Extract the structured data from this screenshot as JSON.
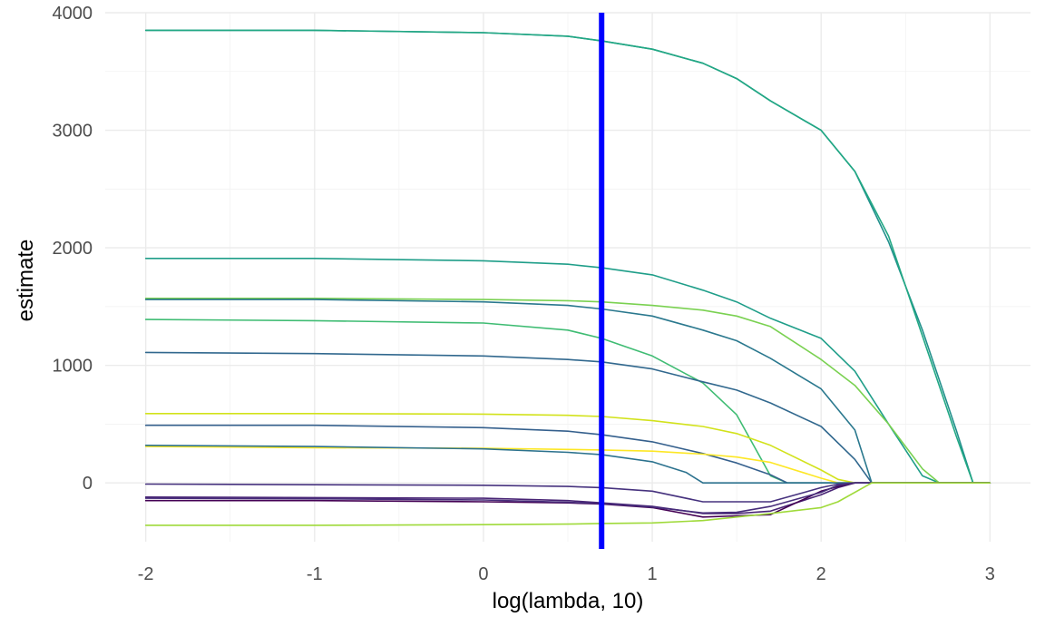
{
  "chart_data": {
    "type": "line",
    "title": "",
    "xlabel": "log(lambda, 10)",
    "ylabel": "estimate",
    "xlim": [
      -2.24,
      3.24
    ],
    "ylim": [
      -500,
      4000
    ],
    "xticks": [
      -2,
      -1,
      0,
      1,
      2,
      3
    ],
    "yticks": [
      0,
      1000,
      2000,
      3000,
      4000
    ],
    "grid": true,
    "legend": "none",
    "reference_line": {
      "x": 0.7,
      "color": "#0000ff"
    },
    "series": [
      {
        "color": "#21908c",
        "points": [
          [
            -2,
            3850
          ],
          [
            -1,
            3850
          ],
          [
            0,
            3830
          ],
          [
            0.5,
            3800
          ],
          [
            0.7,
            3760
          ],
          [
            1,
            3690
          ],
          [
            1.3,
            3570
          ],
          [
            1.5,
            3440
          ],
          [
            1.7,
            3250
          ],
          [
            2,
            3000
          ],
          [
            2.2,
            2650
          ],
          [
            2.4,
            2050
          ],
          [
            2.6,
            1300
          ],
          [
            2.8,
            450
          ],
          [
            2.9,
            0
          ],
          [
            3,
            0
          ]
        ]
      },
      {
        "color": "#22a884",
        "points": [
          [
            -2,
            3850
          ],
          [
            -1,
            3850
          ],
          [
            0,
            3830
          ],
          [
            0.5,
            3800
          ],
          [
            0.7,
            3760
          ],
          [
            1,
            3690
          ],
          [
            1.3,
            3570
          ],
          [
            1.5,
            3440
          ],
          [
            1.7,
            3250
          ],
          [
            2,
            3000
          ],
          [
            2.2,
            2650
          ],
          [
            2.4,
            2100
          ],
          [
            2.6,
            1250
          ],
          [
            2.8,
            400
          ],
          [
            2.9,
            0
          ],
          [
            3,
            0
          ]
        ]
      },
      {
        "color": "#1f9e89",
        "points": [
          [
            -2,
            1910
          ],
          [
            -1,
            1910
          ],
          [
            0,
            1890
          ],
          [
            0.5,
            1860
          ],
          [
            0.7,
            1830
          ],
          [
            1,
            1770
          ],
          [
            1.3,
            1640
          ],
          [
            1.5,
            1540
          ],
          [
            1.7,
            1400
          ],
          [
            2,
            1230
          ],
          [
            2.2,
            950
          ],
          [
            2.4,
            500
          ],
          [
            2.6,
            60
          ],
          [
            2.7,
            0
          ],
          [
            3,
            0
          ]
        ]
      },
      {
        "color": "#7ad151",
        "points": [
          [
            -2,
            1570
          ],
          [
            -1,
            1570
          ],
          [
            0,
            1560
          ],
          [
            0.5,
            1550
          ],
          [
            0.7,
            1540
          ],
          [
            1,
            1510
          ],
          [
            1.3,
            1470
          ],
          [
            1.5,
            1420
          ],
          [
            1.7,
            1330
          ],
          [
            2,
            1050
          ],
          [
            2.2,
            830
          ],
          [
            2.4,
            500
          ],
          [
            2.6,
            120
          ],
          [
            2.7,
            0
          ],
          [
            3,
            0
          ]
        ]
      },
      {
        "color": "#2a788e",
        "points": [
          [
            -2,
            1560
          ],
          [
            -1,
            1560
          ],
          [
            0,
            1540
          ],
          [
            0.5,
            1510
          ],
          [
            0.7,
            1480
          ],
          [
            1,
            1420
          ],
          [
            1.3,
            1300
          ],
          [
            1.5,
            1210
          ],
          [
            1.7,
            1060
          ],
          [
            2,
            800
          ],
          [
            2.2,
            450
          ],
          [
            2.3,
            0
          ],
          [
            3,
            0
          ]
        ]
      },
      {
        "color": "#3fbc73",
        "points": [
          [
            -2,
            1390
          ],
          [
            -1,
            1380
          ],
          [
            0,
            1360
          ],
          [
            0.5,
            1300
          ],
          [
            0.7,
            1230
          ],
          [
            1,
            1080
          ],
          [
            1.3,
            850
          ],
          [
            1.5,
            580
          ],
          [
            1.7,
            60
          ],
          [
            1.8,
            0
          ],
          [
            3,
            0
          ]
        ]
      },
      {
        "color": "#31688e",
        "points": [
          [
            -2,
            1110
          ],
          [
            -1,
            1100
          ],
          [
            0,
            1080
          ],
          [
            0.5,
            1050
          ],
          [
            0.7,
            1030
          ],
          [
            1,
            970
          ],
          [
            1.3,
            860
          ],
          [
            1.5,
            790
          ],
          [
            1.7,
            680
          ],
          [
            2,
            480
          ],
          [
            2.2,
            200
          ],
          [
            2.3,
            0
          ],
          [
            3,
            0
          ]
        ]
      },
      {
        "color": "#d2e21b",
        "points": [
          [
            -2,
            590
          ],
          [
            -1,
            590
          ],
          [
            0,
            585
          ],
          [
            0.5,
            575
          ],
          [
            0.7,
            565
          ],
          [
            1,
            530
          ],
          [
            1.3,
            480
          ],
          [
            1.5,
            420
          ],
          [
            1.7,
            320
          ],
          [
            2,
            110
          ],
          [
            2.1,
            30
          ],
          [
            2.2,
            0
          ],
          [
            3,
            0
          ]
        ]
      },
      {
        "color": "#35608d",
        "points": [
          [
            -2,
            490
          ],
          [
            -1,
            490
          ],
          [
            0,
            470
          ],
          [
            0.5,
            440
          ],
          [
            0.7,
            410
          ],
          [
            1,
            350
          ],
          [
            1.3,
            250
          ],
          [
            1.5,
            170
          ],
          [
            1.7,
            70
          ],
          [
            1.8,
            0
          ],
          [
            3,
            0
          ]
        ]
      },
      {
        "color": "#fde725",
        "points": [
          [
            -2,
            310
          ],
          [
            -1,
            300
          ],
          [
            0,
            295
          ],
          [
            0.5,
            285
          ],
          [
            0.7,
            280
          ],
          [
            1,
            270
          ],
          [
            1.3,
            245
          ],
          [
            1.5,
            220
          ],
          [
            1.7,
            175
          ],
          [
            2,
            40
          ],
          [
            2.1,
            0
          ],
          [
            3,
            0
          ]
        ]
      },
      {
        "color": "#2c728e",
        "points": [
          [
            -2,
            320
          ],
          [
            -1,
            310
          ],
          [
            0,
            290
          ],
          [
            0.5,
            260
          ],
          [
            0.7,
            240
          ],
          [
            1,
            180
          ],
          [
            1.2,
            90
          ],
          [
            1.3,
            0
          ],
          [
            3,
            0
          ]
        ]
      },
      {
        "color": "#46327e",
        "points": [
          [
            -2,
            -10
          ],
          [
            -1,
            -15
          ],
          [
            0,
            -20
          ],
          [
            0.5,
            -30
          ],
          [
            0.7,
            -40
          ],
          [
            1,
            -70
          ],
          [
            1.3,
            -160
          ],
          [
            1.5,
            -160
          ],
          [
            1.7,
            -160
          ],
          [
            2,
            -40
          ],
          [
            2.1,
            -10
          ],
          [
            2.2,
            0
          ],
          [
            3,
            0
          ]
        ]
      },
      {
        "color": "#482475",
        "points": [
          [
            -2,
            -120
          ],
          [
            -1,
            -125
          ],
          [
            0,
            -130
          ],
          [
            0.5,
            -150
          ],
          [
            0.7,
            -170
          ],
          [
            1,
            -200
          ],
          [
            1.3,
            -260
          ],
          [
            1.5,
            -260
          ],
          [
            1.7,
            -240
          ],
          [
            2,
            -100
          ],
          [
            2.1,
            -40
          ],
          [
            2.2,
            0
          ],
          [
            3,
            0
          ]
        ]
      },
      {
        "color": "#440154",
        "points": [
          [
            -2,
            -150
          ],
          [
            -1,
            -150
          ],
          [
            0,
            -160
          ],
          [
            0.5,
            -170
          ],
          [
            0.7,
            -180
          ],
          [
            1,
            -210
          ],
          [
            1.3,
            -290
          ],
          [
            1.5,
            -280
          ],
          [
            1.7,
            -270
          ],
          [
            2,
            -70
          ],
          [
            2.1,
            -30
          ],
          [
            2.2,
            0
          ],
          [
            3,
            0
          ]
        ]
      },
      {
        "color": "#472d7b",
        "points": [
          [
            -2,
            -130
          ],
          [
            -1,
            -135
          ],
          [
            0,
            -145
          ],
          [
            0.5,
            -165
          ],
          [
            0.7,
            -175
          ],
          [
            1,
            -205
          ],
          [
            1.3,
            -255
          ],
          [
            1.5,
            -250
          ],
          [
            1.7,
            -200
          ],
          [
            2,
            -80
          ],
          [
            2.1,
            -20
          ],
          [
            2.2,
            0
          ],
          [
            3,
            0
          ]
        ]
      },
      {
        "color": "#9fda3a",
        "points": [
          [
            -2,
            -360
          ],
          [
            -1,
            -360
          ],
          [
            0,
            -355
          ],
          [
            0.5,
            -350
          ],
          [
            0.7,
            -345
          ],
          [
            1,
            -340
          ],
          [
            1.3,
            -320
          ],
          [
            1.5,
            -290
          ],
          [
            1.7,
            -260
          ],
          [
            2,
            -210
          ],
          [
            2.1,
            -160
          ],
          [
            2.3,
            0
          ],
          [
            3,
            0
          ]
        ]
      }
    ]
  }
}
